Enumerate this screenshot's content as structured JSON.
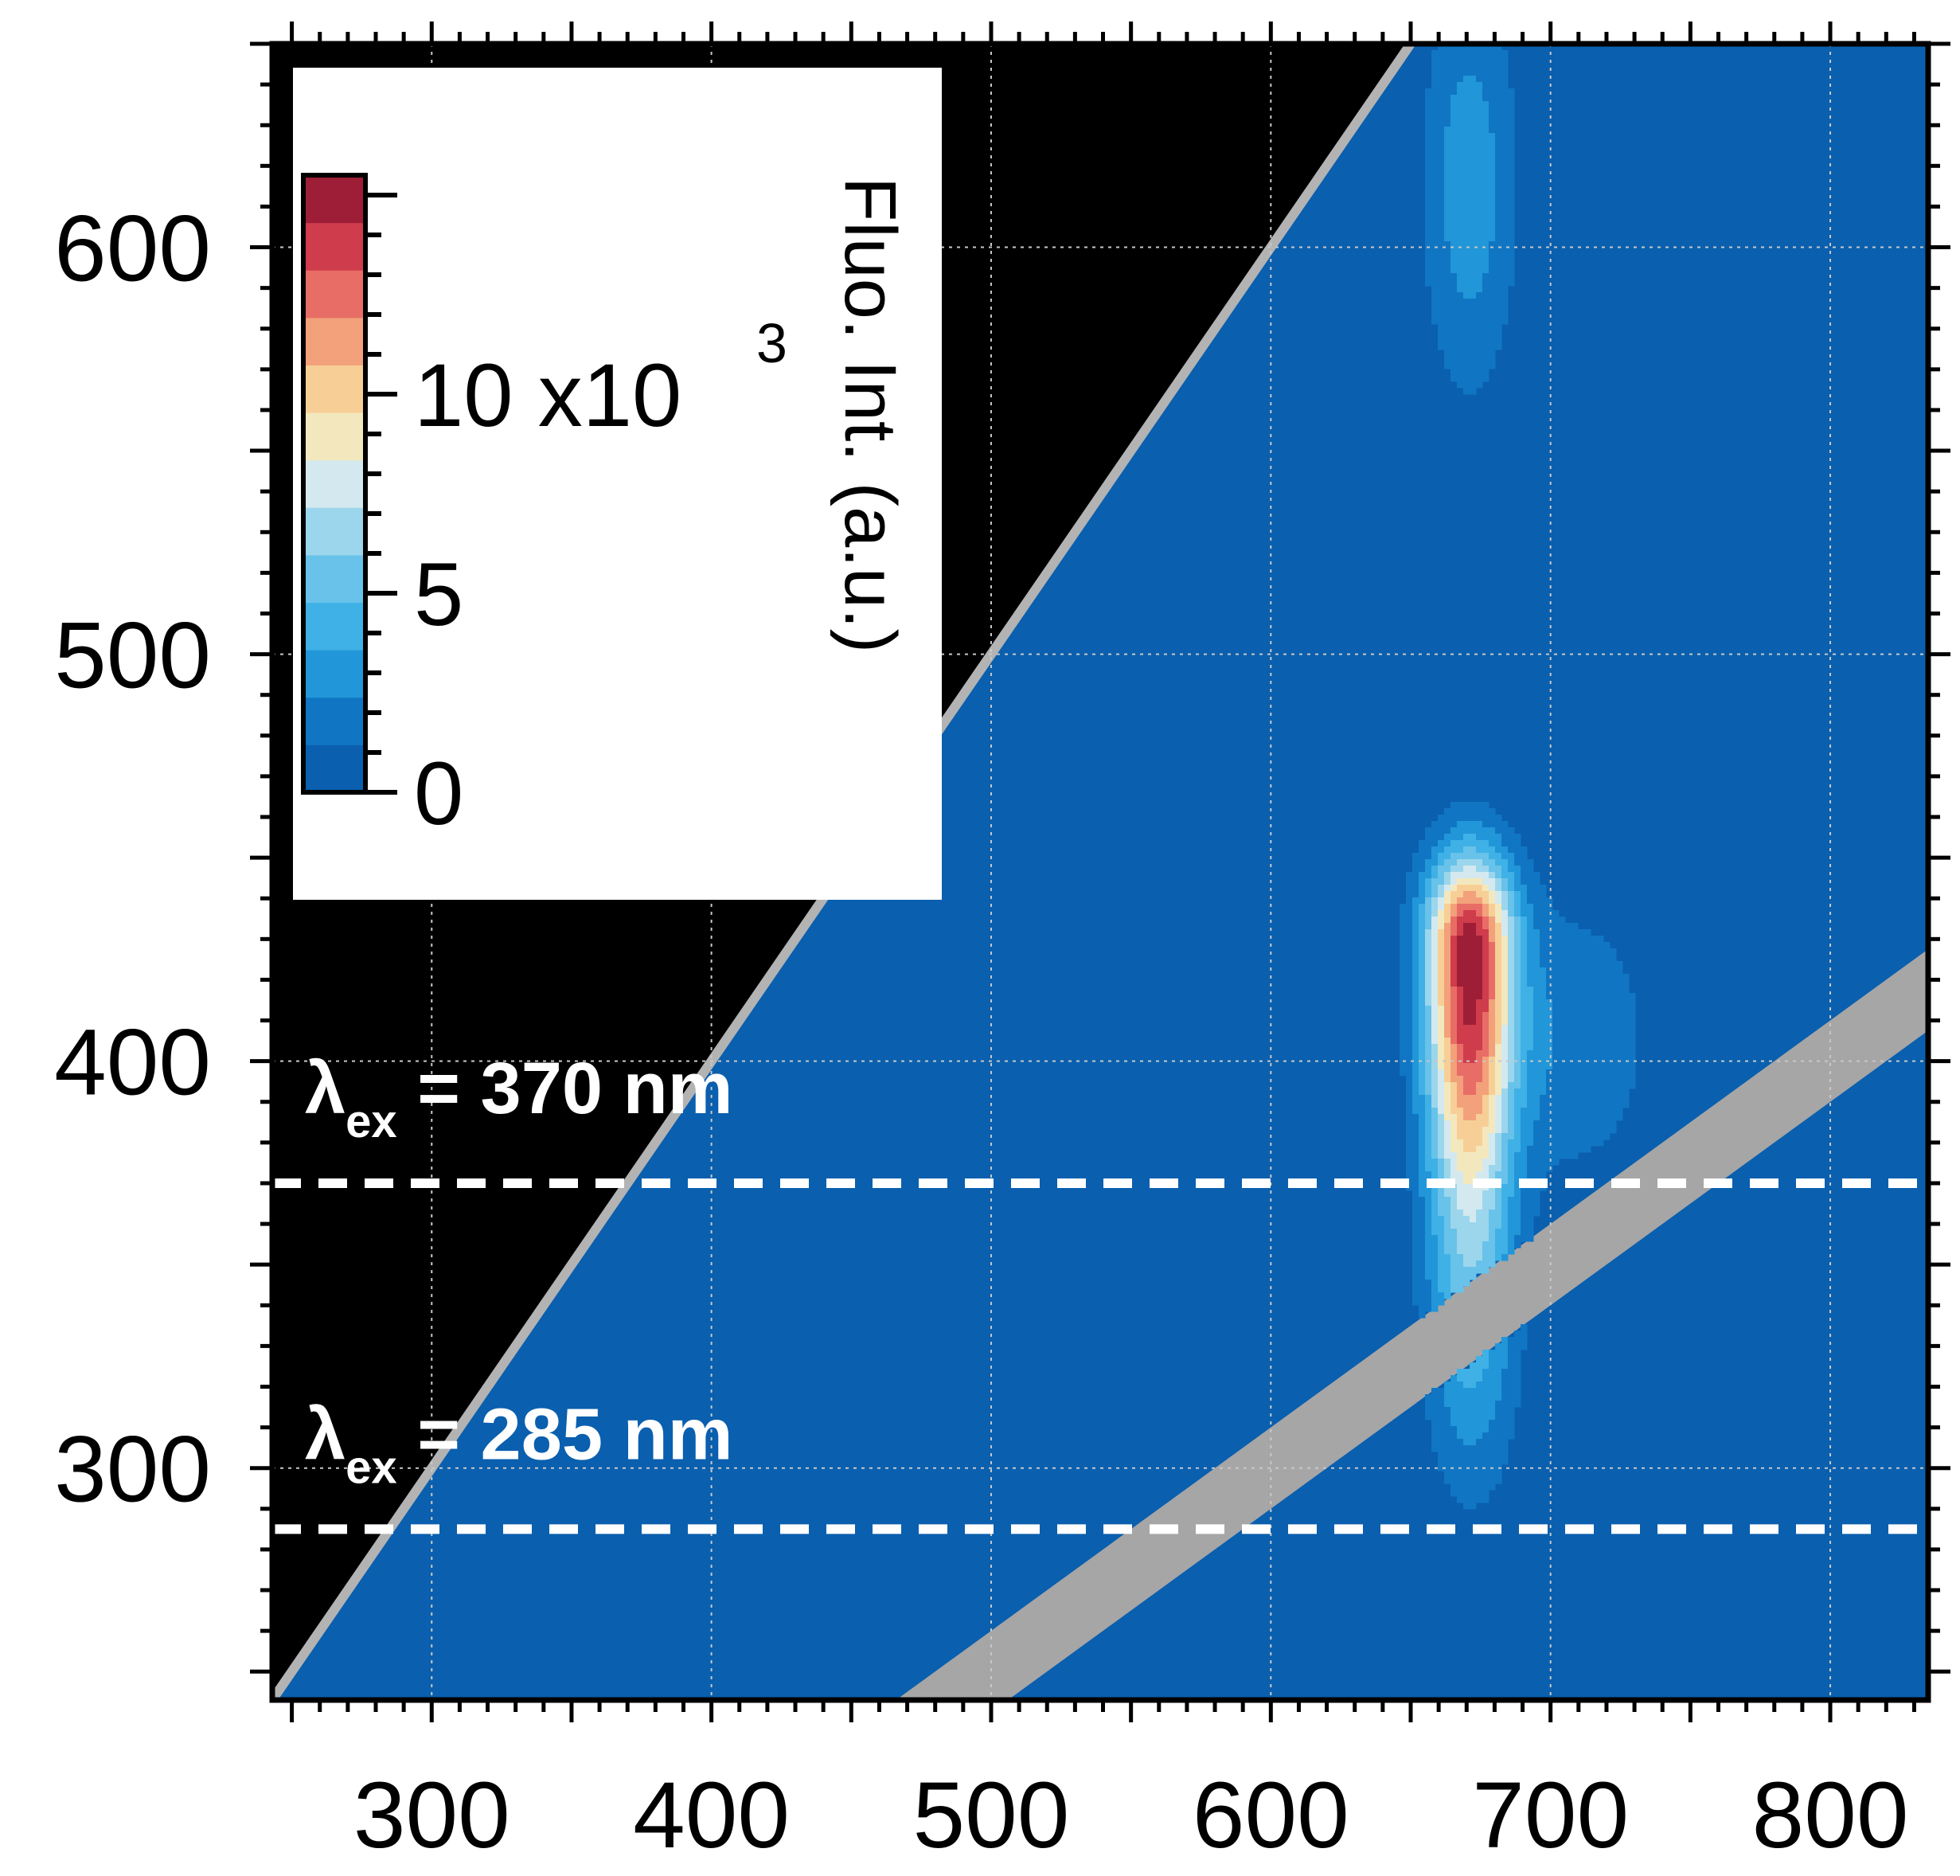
{
  "chart_data": {
    "type": "heatmap",
    "title": "",
    "xlabel": "",
    "ylabel": "",
    "xlim": [
      243,
      835
    ],
    "ylim": [
      243,
      650
    ],
    "x_ticks": [
      300,
      400,
      500,
      600,
      700,
      800
    ],
    "x_tick_labels": [
      "300",
      "400",
      "500",
      "600",
      "700",
      "800"
    ],
    "y_ticks": [
      300,
      400,
      500,
      600
    ],
    "y_tick_labels": [
      "300",
      "400",
      "500",
      "600"
    ],
    "grid": true,
    "grid_style": "dotted",
    "background_color": "#0a5fae",
    "masked_region_color": "#000000",
    "diagonal_line_color": "#b3b3b3",
    "second_order_band_color": "#a6a6a6",
    "colorbar": {
      "title": "Fluo. Int. (a.u.)",
      "min": 0,
      "max": 15500,
      "ticks": [
        0,
        5,
        10
      ],
      "tick_labels": [
        "0",
        "5",
        "10 x10"
      ],
      "exponent": "3",
      "levels": [
        "#0a5fae",
        "#1076c4",
        "#2196d8",
        "#3fb1e6",
        "#68c2e9",
        "#9cd6ec",
        "#d3e9ef",
        "#f3e8bd",
        "#f7cf96",
        "#f2a17b",
        "#e86d66",
        "#cf3c4c",
        "#9d1e36"
      ]
    },
    "excitation_lines": [
      {
        "value": 370,
        "label_main": "λ",
        "label_sub": "ex",
        "label_rest": " = 370 nm",
        "color": "#ffffff",
        "style": "dashed"
      },
      {
        "value": 285,
        "label_main": "λ",
        "label_sub": "ex",
        "label_rest": " = 285 nm",
        "color": "#ffffff",
        "style": "dashed"
      }
    ],
    "peaks": [
      {
        "name": "main",
        "x_center": 671,
        "y_center": 415,
        "x_range": [
          659,
          690
        ],
        "y_range": [
          298,
          453
        ],
        "max_value": 15000
      },
      {
        "name": "shoulder",
        "x_center": 700,
        "y_center": 405,
        "x_range": [
          690,
          737
        ],
        "y_range": [
          370,
          440
        ],
        "max_value": 3000
      },
      {
        "name": "upper",
        "x_center": 671,
        "y_center": 610,
        "x_range": [
          659,
          683
        ],
        "y_range": [
          565,
          650
        ],
        "max_value": 3500
      }
    ]
  }
}
